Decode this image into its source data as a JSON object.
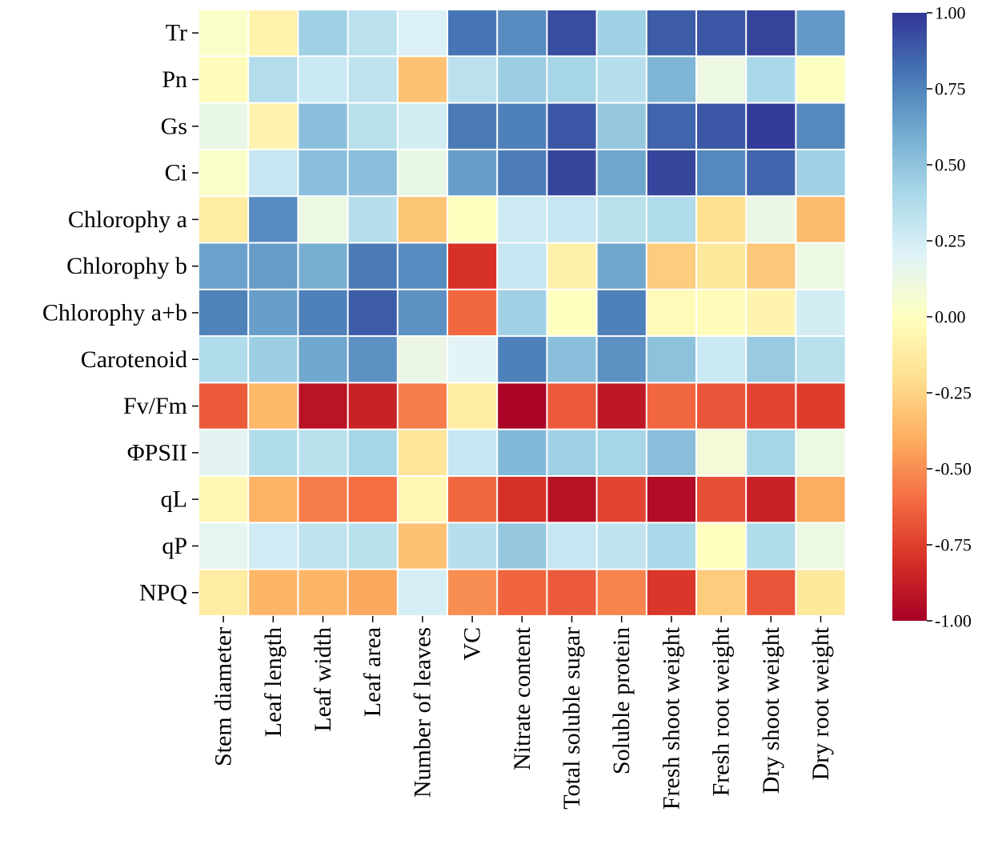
{
  "chart_data": {
    "type": "heatmap",
    "title": "",
    "xlabel": "",
    "ylabel": "",
    "rows": [
      "Tr",
      "Pn",
      "Gs",
      "Ci",
      "Chlorophy a",
      "Chlorophy b",
      "Chlorophy a+b",
      "Carotenoid",
      "Fv/Fm",
      "ΦPSII",
      "qL",
      "qP",
      "NPQ"
    ],
    "columns": [
      "Stem diameter",
      "Leaf length",
      "Leaf width",
      "Leaf area",
      "Number of leaves",
      "VC",
      "Nitrate content",
      "Total soluble sugar",
      "Soluble protein",
      "Fresh shoot weight",
      "Fresh root weight",
      "Dry shoot weight",
      "Dry root weight"
    ],
    "values": [
      [
        0.03,
        -0.08,
        0.44,
        0.34,
        0.22,
        0.8,
        0.72,
        0.93,
        0.44,
        0.88,
        0.9,
        0.96,
        0.67
      ],
      [
        -0.02,
        0.37,
        0.28,
        0.33,
        -0.32,
        0.34,
        0.45,
        0.42,
        0.36,
        0.56,
        0.12,
        0.4,
        0.01
      ],
      [
        0.14,
        -0.07,
        0.52,
        0.35,
        0.25,
        0.78,
        0.76,
        0.9,
        0.48,
        0.85,
        0.9,
        0.98,
        0.73
      ],
      [
        0.03,
        0.3,
        0.52,
        0.52,
        0.14,
        0.65,
        0.77,
        0.95,
        0.62,
        0.95,
        0.73,
        0.85,
        0.44
      ],
      [
        -0.12,
        0.72,
        0.12,
        0.36,
        -0.31,
        0.0,
        0.27,
        0.3,
        0.35,
        0.38,
        -0.2,
        0.13,
        -0.35
      ],
      [
        0.64,
        0.66,
        0.59,
        0.78,
        0.72,
        -0.8,
        0.3,
        -0.1,
        0.62,
        -0.28,
        -0.15,
        -0.3,
        0.12
      ],
      [
        0.75,
        0.65,
        0.76,
        0.88,
        0.7,
        -0.62,
        0.44,
        0.0,
        0.76,
        -0.03,
        -0.02,
        -0.07,
        0.25
      ],
      [
        0.38,
        0.45,
        0.62,
        0.7,
        0.13,
        0.19,
        0.76,
        0.52,
        0.7,
        0.51,
        0.28,
        0.47,
        0.35
      ],
      [
        -0.66,
        -0.36,
        -0.92,
        -0.86,
        -0.55,
        -0.12,
        -0.98,
        -0.66,
        -0.9,
        -0.62,
        -0.68,
        -0.73,
        -0.76
      ],
      [
        0.18,
        0.38,
        0.35,
        0.42,
        -0.17,
        0.3,
        0.55,
        0.44,
        0.42,
        0.52,
        0.08,
        0.42,
        0.12
      ],
      [
        -0.05,
        -0.38,
        -0.55,
        -0.6,
        -0.05,
        -0.62,
        -0.8,
        -0.93,
        -0.73,
        -0.95,
        -0.7,
        -0.86,
        -0.4
      ],
      [
        0.17,
        0.26,
        0.33,
        0.35,
        -0.32,
        0.36,
        0.48,
        0.3,
        0.32,
        0.4,
        0.0,
        0.38,
        0.12
      ],
      [
        -0.12,
        -0.37,
        -0.37,
        -0.42,
        0.24,
        -0.5,
        -0.63,
        -0.66,
        -0.53,
        -0.78,
        -0.28,
        -0.68,
        -0.15
      ]
    ],
    "vmin": -1.0,
    "vmax": 1.0,
    "colormap": "RdYlBu",
    "colormap_stops": [
      "#a50026",
      "#d73027",
      "#f46d43",
      "#fdae61",
      "#fee090",
      "#ffffbf",
      "#e0f3f8",
      "#abd9e9",
      "#74add1",
      "#4575b4",
      "#313695"
    ],
    "grid_color": "#ffffff",
    "colorbar": {
      "ticks": [
        1.0,
        0.75,
        0.5,
        0.25,
        0.0,
        -0.25,
        -0.5,
        -0.75,
        -1.0
      ],
      "tick_labels": [
        "1.00",
        "0.75",
        "0.50",
        "0.25",
        "0.00",
        "-0.25",
        "-0.50",
        "-0.75",
        "-1.00"
      ]
    }
  }
}
